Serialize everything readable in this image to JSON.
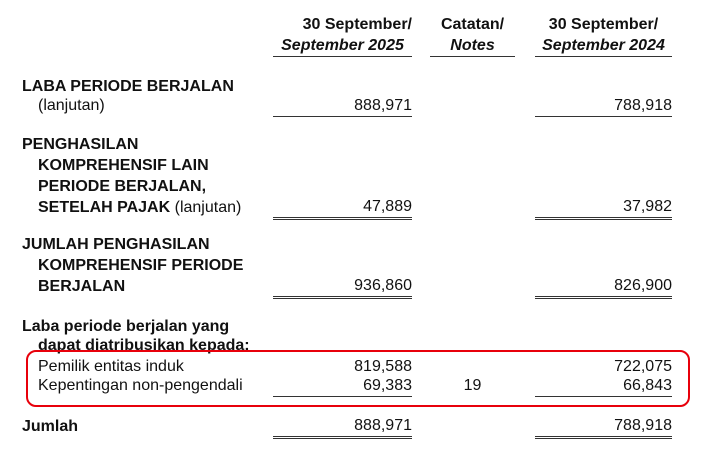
{
  "header": {
    "col1_line1": "30 September/",
    "col1_line2": "September 2025",
    "notes_line1": "Catatan/",
    "notes_line2": "Notes",
    "col2_line1": "30 September/",
    "col2_line2": "September 2024"
  },
  "rows": [
    {
      "label_bold": [
        "LABA PERIODE BERJALAN"
      ],
      "label_suffix": "(lanjutan)",
      "v2025": "888,971",
      "v2024": "788,918"
    },
    {
      "label_bold": [
        "PENGHASILAN",
        "KOMPREHENSIF LAIN",
        "PERIODE BERJALAN,",
        "SETELAH PAJAK"
      ],
      "label_suffix": "(lanjutan)",
      "v2025": "47,889",
      "v2024": "37,982"
    },
    {
      "label_bold": [
        "JUMLAH PENGHASILAN",
        "KOMPREHENSIF PERIODE",
        "BERJALAN"
      ],
      "v2025": "936,860",
      "v2024": "826,900"
    }
  ],
  "attribution": {
    "heading_line1": "Laba periode berjalan yang",
    "heading_line2": "dapat diatribusikan kepada:",
    "items": [
      {
        "label": "Pemilik entitas induk",
        "v2025": "819,588",
        "note": "",
        "v2024": "722,075"
      },
      {
        "label": "Kepentingan non-pengendali",
        "v2025": "69,383",
        "note": "19",
        "v2024": "66,843"
      }
    ]
  },
  "total": {
    "label": "Jumlah",
    "v2025": "888,971",
    "v2024": "788,918"
  },
  "highlight_color": "#e8000b"
}
